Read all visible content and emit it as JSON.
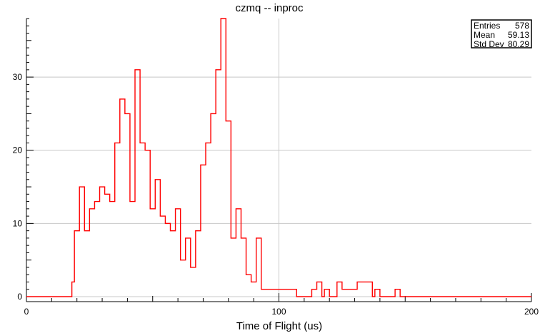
{
  "chart_data": {
    "type": "histogram",
    "title": "czmq -- inproc",
    "xlabel": "Time of Flight (us)",
    "ylabel": "",
    "xlim": [
      0,
      200
    ],
    "ylim": [
      0,
      38
    ],
    "x_ticks": [
      0,
      100,
      200
    ],
    "y_ticks": [
      0,
      10,
      20,
      30
    ],
    "grid": true,
    "line_color": "#ff0000",
    "bin_width": 1,
    "bins": [
      {
        "x": 18,
        "y": 2
      },
      {
        "x": 19,
        "y": 9
      },
      {
        "x": 20,
        "y": 9
      },
      {
        "x": 21,
        "y": 15
      },
      {
        "x": 22,
        "y": 15
      },
      {
        "x": 23,
        "y": 9
      },
      {
        "x": 24,
        "y": 9
      },
      {
        "x": 25,
        "y": 12
      },
      {
        "x": 26,
        "y": 12
      },
      {
        "x": 27,
        "y": 13
      },
      {
        "x": 28,
        "y": 13
      },
      {
        "x": 29,
        "y": 15
      },
      {
        "x": 30,
        "y": 15
      },
      {
        "x": 31,
        "y": 14
      },
      {
        "x": 32,
        "y": 14
      },
      {
        "x": 33,
        "y": 13
      },
      {
        "x": 34,
        "y": 13
      },
      {
        "x": 35,
        "y": 21
      },
      {
        "x": 36,
        "y": 21
      },
      {
        "x": 37,
        "y": 27
      },
      {
        "x": 38,
        "y": 27
      },
      {
        "x": 39,
        "y": 25
      },
      {
        "x": 40,
        "y": 25
      },
      {
        "x": 41,
        "y": 13
      },
      {
        "x": 42,
        "y": 13
      },
      {
        "x": 43,
        "y": 31
      },
      {
        "x": 44,
        "y": 31
      },
      {
        "x": 45,
        "y": 21
      },
      {
        "x": 46,
        "y": 21
      },
      {
        "x": 47,
        "y": 20
      },
      {
        "x": 48,
        "y": 20
      },
      {
        "x": 49,
        "y": 12
      },
      {
        "x": 50,
        "y": 12
      },
      {
        "x": 51,
        "y": 16
      },
      {
        "x": 52,
        "y": 16
      },
      {
        "x": 53,
        "y": 11
      },
      {
        "x": 54,
        "y": 11
      },
      {
        "x": 55,
        "y": 10
      },
      {
        "x": 56,
        "y": 10
      },
      {
        "x": 57,
        "y": 9
      },
      {
        "x": 58,
        "y": 9
      },
      {
        "x": 59,
        "y": 12
      },
      {
        "x": 60,
        "y": 12
      },
      {
        "x": 61,
        "y": 5
      },
      {
        "x": 62,
        "y": 5
      },
      {
        "x": 63,
        "y": 8
      },
      {
        "x": 64,
        "y": 8
      },
      {
        "x": 65,
        "y": 4
      },
      {
        "x": 66,
        "y": 4
      },
      {
        "x": 67,
        "y": 9
      },
      {
        "x": 68,
        "y": 9
      },
      {
        "x": 69,
        "y": 18
      },
      {
        "x": 70,
        "y": 18
      },
      {
        "x": 71,
        "y": 21
      },
      {
        "x": 72,
        "y": 21
      },
      {
        "x": 73,
        "y": 25
      },
      {
        "x": 74,
        "y": 25
      },
      {
        "x": 75,
        "y": 31
      },
      {
        "x": 76,
        "y": 31
      },
      {
        "x": 77,
        "y": 38
      },
      {
        "x": 78,
        "y": 38
      },
      {
        "x": 79,
        "y": 24
      },
      {
        "x": 80,
        "y": 24
      },
      {
        "x": 81,
        "y": 8
      },
      {
        "x": 82,
        "y": 8
      },
      {
        "x": 83,
        "y": 12
      },
      {
        "x": 84,
        "y": 12
      },
      {
        "x": 85,
        "y": 8
      },
      {
        "x": 86,
        "y": 8
      },
      {
        "x": 87,
        "y": 3
      },
      {
        "x": 88,
        "y": 3
      },
      {
        "x": 89,
        "y": 2
      },
      {
        "x": 90,
        "y": 2
      },
      {
        "x": 91,
        "y": 8
      },
      {
        "x": 92,
        "y": 8
      },
      {
        "x": 93,
        "y": 1
      },
      {
        "x": 94,
        "y": 1
      },
      {
        "x": 95,
        "y": 1
      },
      {
        "x": 96,
        "y": 1
      },
      {
        "x": 97,
        "y": 1
      },
      {
        "x": 98,
        "y": 1
      },
      {
        "x": 99,
        "y": 1
      },
      {
        "x": 100,
        "y": 1
      },
      {
        "x": 101,
        "y": 1
      },
      {
        "x": 102,
        "y": 1
      },
      {
        "x": 103,
        "y": 1
      },
      {
        "x": 104,
        "y": 1
      },
      {
        "x": 105,
        "y": 1
      },
      {
        "x": 106,
        "y": 1
      },
      {
        "x": 107,
        "y": 0
      },
      {
        "x": 108,
        "y": 0
      },
      {
        "x": 109,
        "y": 0
      },
      {
        "x": 110,
        "y": 0
      },
      {
        "x": 111,
        "y": 0
      },
      {
        "x": 112,
        "y": 0
      },
      {
        "x": 113,
        "y": 1
      },
      {
        "x": 114,
        "y": 1
      },
      {
        "x": 115,
        "y": 2
      },
      {
        "x": 116,
        "y": 2
      },
      {
        "x": 117,
        "y": 0
      },
      {
        "x": 118,
        "y": 1
      },
      {
        "x": 119,
        "y": 1
      },
      {
        "x": 120,
        "y": 0
      },
      {
        "x": 121,
        "y": 0
      },
      {
        "x": 122,
        "y": 0
      },
      {
        "x": 123,
        "y": 2
      },
      {
        "x": 124,
        "y": 2
      },
      {
        "x": 125,
        "y": 1
      },
      {
        "x": 126,
        "y": 1
      },
      {
        "x": 127,
        "y": 1
      },
      {
        "x": 128,
        "y": 1
      },
      {
        "x": 129,
        "y": 1
      },
      {
        "x": 130,
        "y": 1
      },
      {
        "x": 131,
        "y": 2
      },
      {
        "x": 132,
        "y": 2
      },
      {
        "x": 133,
        "y": 2
      },
      {
        "x": 134,
        "y": 2
      },
      {
        "x": 135,
        "y": 2
      },
      {
        "x": 136,
        "y": 2
      },
      {
        "x": 137,
        "y": 0
      },
      {
        "x": 138,
        "y": 1
      },
      {
        "x": 139,
        "y": 1
      },
      {
        "x": 140,
        "y": 0
      },
      {
        "x": 141,
        "y": 0
      },
      {
        "x": 142,
        "y": 0
      },
      {
        "x": 143,
        "y": 0
      },
      {
        "x": 144,
        "y": 0
      },
      {
        "x": 145,
        "y": 0
      },
      {
        "x": 146,
        "y": 1
      },
      {
        "x": 147,
        "y": 1
      },
      {
        "x": 148,
        "y": 0
      }
    ],
    "stats": {
      "entries_label": "Entries",
      "entries": "578",
      "mean_label": "Mean",
      "mean": "59.13",
      "stddev_label": "Std Dev",
      "stddev": "80.29"
    }
  }
}
